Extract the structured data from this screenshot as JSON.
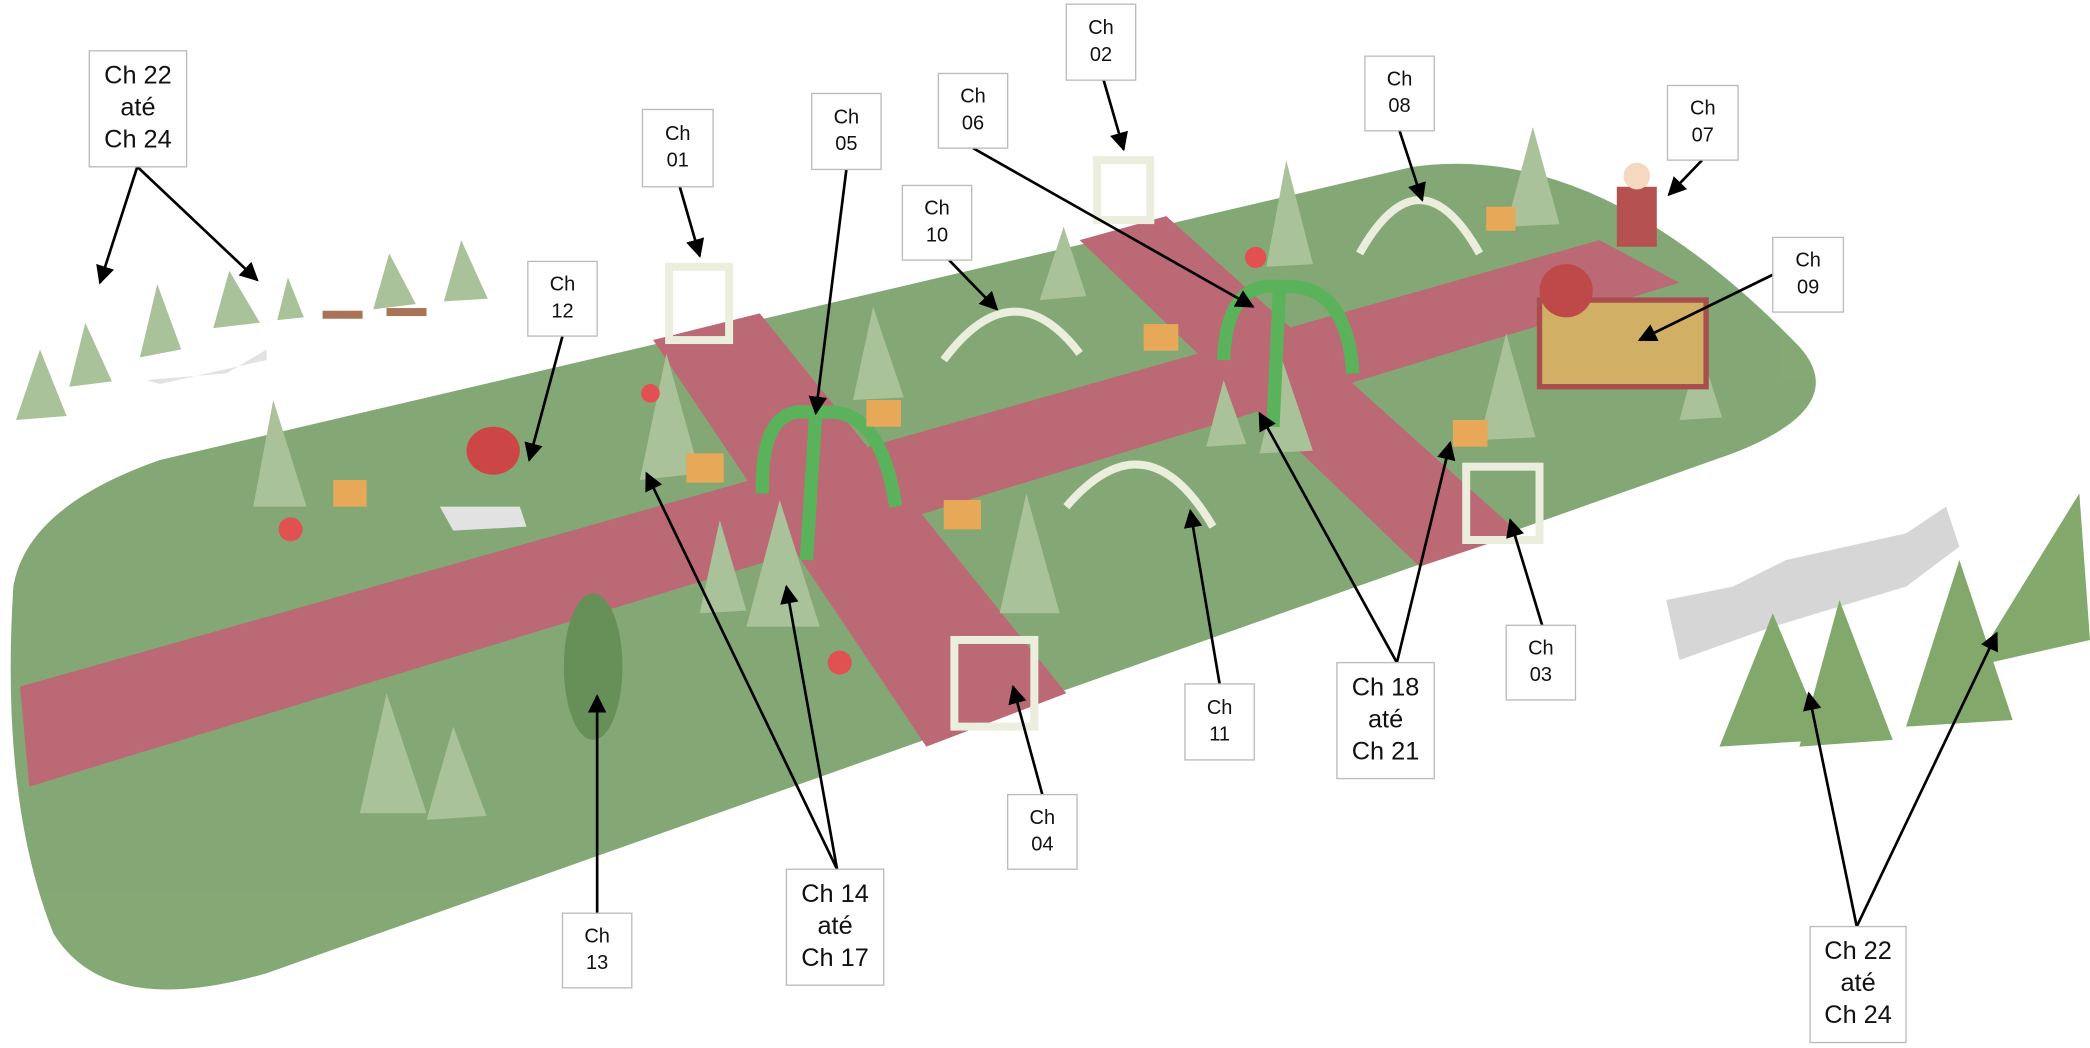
{
  "labels": [
    {
      "lines": [
        "Ch 22",
        "até",
        "Ch 24"
      ]
    },
    {
      "lines": [
        "Ch",
        "01"
      ]
    },
    {
      "lines": [
        "Ch",
        "05"
      ]
    },
    {
      "lines": [
        "Ch",
        "10"
      ]
    },
    {
      "lines": [
        "Ch",
        "06"
      ]
    },
    {
      "lines": [
        "Ch",
        "02"
      ]
    },
    {
      "lines": [
        "Ch",
        "08"
      ]
    },
    {
      "lines": [
        "Ch",
        "07"
      ]
    },
    {
      "lines": [
        "Ch",
        "09"
      ]
    },
    {
      "lines": [
        "Ch",
        "12"
      ]
    },
    {
      "lines": [
        "Ch",
        "13"
      ]
    },
    {
      "lines": [
        "Ch 14",
        "até",
        "Ch 17"
      ]
    },
    {
      "lines": [
        "Ch",
        "04"
      ]
    },
    {
      "lines": [
        "Ch",
        "11"
      ]
    },
    {
      "lines": [
        "Ch 18",
        "até",
        "Ch 21"
      ]
    },
    {
      "lines": [
        "Ch",
        "03"
      ]
    },
    {
      "lines": [
        "Ch 22",
        "até",
        "Ch 24"
      ]
    }
  ]
}
